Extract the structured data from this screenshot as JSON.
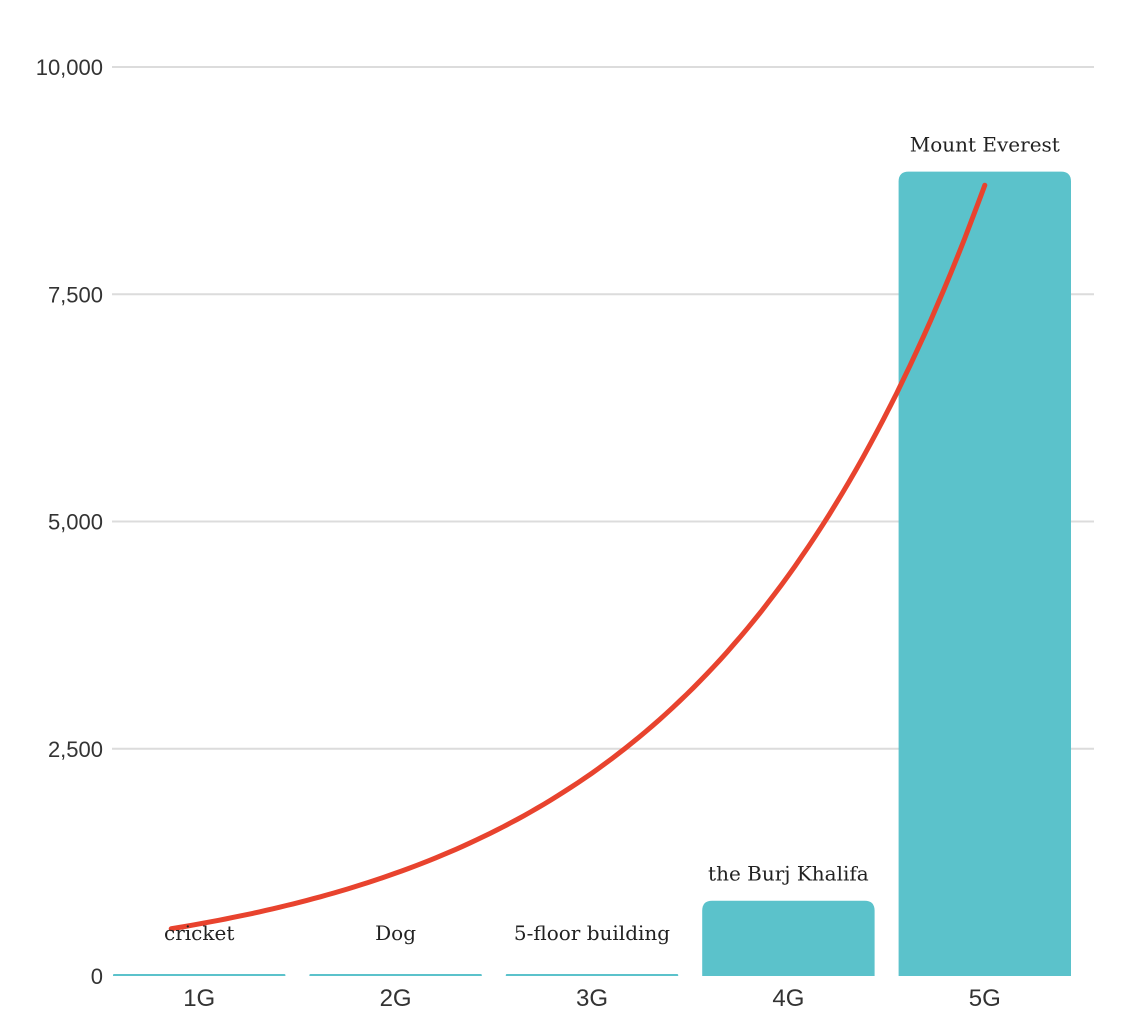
{
  "chart_data": {
    "type": "bar",
    "categories": [
      "1G",
      "2G",
      "3G",
      "4G",
      "5G"
    ],
    "values": [
      3,
      5,
      15,
      828,
      8849
    ],
    "data_labels": [
      "cricket",
      "Dog",
      "5-floor building",
      "the Burj Khalifa",
      "Mount Everest"
    ],
    "ylim": [
      0,
      10000
    ],
    "yticks": [
      0,
      2500,
      5000,
      7500,
      10000
    ],
    "ytick_labels": [
      "0",
      "2,500",
      "5,000",
      "7,500",
      "10,000"
    ],
    "title": "",
    "xlabel": "",
    "ylabel": "",
    "grid": true,
    "legend": "none",
    "trend_curve": {
      "type": "exponential",
      "start": {
        "category": "1G",
        "value": 520
      },
      "end": {
        "category": "5G",
        "value": 8700
      }
    },
    "colors": {
      "bar": "#5bc2cb",
      "curve": "#e8432e",
      "grid": "#dcdcdc"
    }
  }
}
